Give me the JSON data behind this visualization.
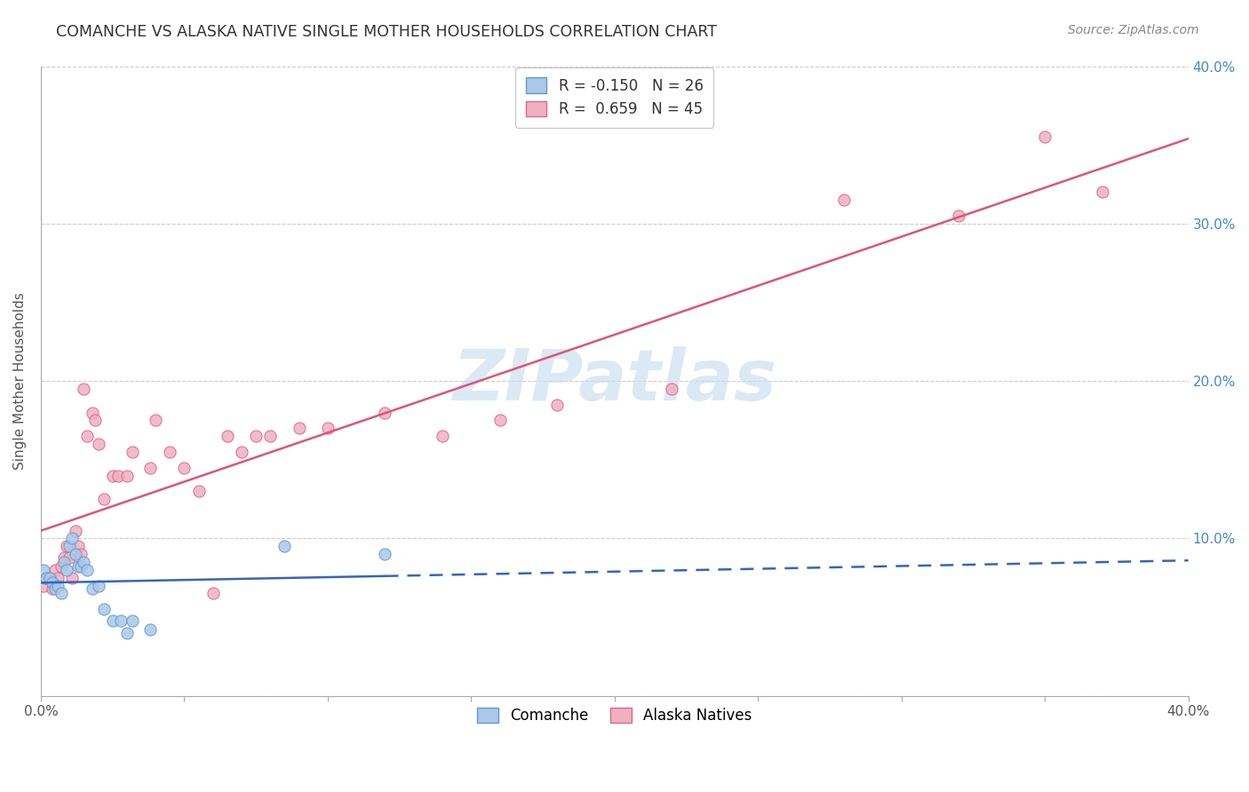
{
  "title": "COMANCHE VS ALASKA NATIVE SINGLE MOTHER HOUSEHOLDS CORRELATION CHART",
  "source": "Source: ZipAtlas.com",
  "ylabel": "Single Mother Households",
  "xlim": [
    0.0,
    0.4
  ],
  "ylim": [
    0.0,
    0.4
  ],
  "xticks": [
    0.0,
    0.05,
    0.1,
    0.15,
    0.2,
    0.25,
    0.3,
    0.35,
    0.4
  ],
  "yticks": [
    0.0,
    0.1,
    0.2,
    0.3,
    0.4
  ],
  "background_color": "#ffffff",
  "grid_color": "#cccccc",
  "comanche_color": "#aac8e8",
  "alaska_color": "#f0b0c0",
  "comanche_edge_color": "#6699cc",
  "alaska_edge_color": "#dd6688",
  "comanche_line_color": "#3366bb",
  "alaska_line_color": "#dd5577",
  "legend_r_comanche": "-0.150",
  "legend_n_comanche": "26",
  "legend_r_alaska": "0.659",
  "legend_n_alaska": "45",
  "comanche_x": [
    0.001,
    0.002,
    0.003,
    0.004,
    0.005,
    0.006,
    0.007,
    0.008,
    0.009,
    0.01,
    0.011,
    0.012,
    0.013,
    0.014,
    0.015,
    0.016,
    0.018,
    0.02,
    0.022,
    0.025,
    0.028,
    0.03,
    0.032,
    0.038,
    0.085,
    0.12
  ],
  "comanche_y": [
    0.08,
    0.075,
    0.075,
    0.072,
    0.068,
    0.07,
    0.065,
    0.085,
    0.08,
    0.095,
    0.1,
    0.09,
    0.082,
    0.082,
    0.085,
    0.08,
    0.068,
    0.07,
    0.055,
    0.048,
    0.048,
    0.04,
    0.048,
    0.042,
    0.095,
    0.09
  ],
  "alaska_x": [
    0.001,
    0.002,
    0.003,
    0.004,
    0.005,
    0.006,
    0.007,
    0.008,
    0.009,
    0.01,
    0.011,
    0.012,
    0.013,
    0.014,
    0.015,
    0.016,
    0.018,
    0.019,
    0.02,
    0.022,
    0.025,
    0.027,
    0.03,
    0.032,
    0.038,
    0.04,
    0.045,
    0.05,
    0.055,
    0.06,
    0.065,
    0.07,
    0.075,
    0.08,
    0.09,
    0.1,
    0.12,
    0.14,
    0.16,
    0.18,
    0.22,
    0.28,
    0.32,
    0.35,
    0.37
  ],
  "alaska_y": [
    0.07,
    0.075,
    0.075,
    0.068,
    0.08,
    0.075,
    0.082,
    0.088,
    0.095,
    0.088,
    0.075,
    0.105,
    0.095,
    0.09,
    0.195,
    0.165,
    0.18,
    0.175,
    0.16,
    0.125,
    0.14,
    0.14,
    0.14,
    0.155,
    0.145,
    0.175,
    0.155,
    0.145,
    0.13,
    0.065,
    0.165,
    0.155,
    0.165,
    0.165,
    0.17,
    0.17,
    0.18,
    0.165,
    0.175,
    0.185,
    0.195,
    0.315,
    0.305,
    0.355,
    0.32
  ],
  "watermark_text": "ZIPatlas",
  "watermark_color": "#cce0f0",
  "right_tick_color": "#4488cc"
}
